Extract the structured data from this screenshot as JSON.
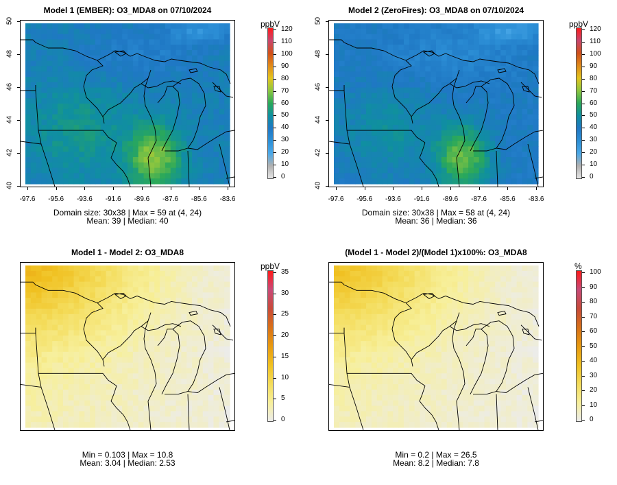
{
  "panels": [
    {
      "id": "p1",
      "title": "Model 1 (EMBER): O3_MDA8 on 07/10/2024",
      "stats_line1": "Domain size: 30x38 | Max = 59 at (4, 24)",
      "stats_line2": "Mean: 39 |  Median: 40",
      "unit": "ppbV",
      "cbar_labels": [
        "120",
        "110",
        "100",
        "90",
        "80",
        "70",
        "60",
        "50",
        "40",
        "30",
        "20",
        "10",
        "0"
      ],
      "x_ticks": [
        "-97.6",
        "-95.6",
        "-93.6",
        "-91.6",
        "-89.6",
        "-87.6",
        "-85.6",
        "-83.6"
      ],
      "y_ticks": [
        "50",
        "48",
        "46",
        "44",
        "42",
        "40"
      ]
    },
    {
      "id": "p2",
      "title": "Model 2 (ZeroFires): O3_MDA8 on 07/10/2024",
      "stats_line1": "Domain size: 30x38 | Max = 58 at (4, 24)",
      "stats_line2": "Mean: 36 |  Median: 36",
      "unit": "ppbV",
      "cbar_labels": [
        "120",
        "110",
        "100",
        "90",
        "80",
        "70",
        "60",
        "50",
        "40",
        "30",
        "20",
        "10",
        "0"
      ],
      "x_ticks": [
        "-97.6",
        "-95.6",
        "-93.6",
        "-91.6",
        "-89.6",
        "-87.6",
        "-85.6",
        "-83.6"
      ],
      "y_ticks": [
        "50",
        "48",
        "46",
        "44",
        "42",
        "40"
      ]
    },
    {
      "id": "p3",
      "title": "Model 1 - Model 2: O3_MDA8",
      "stats_line1": "Min = 0.103 | Max = 10.8",
      "stats_line2": "Mean: 3.04 |  Median: 2.53",
      "unit": "ppbV",
      "cbar_labels": [
        "35",
        "30",
        "25",
        "20",
        "15",
        "10",
        "5",
        "0"
      ]
    },
    {
      "id": "p4",
      "title": "(Model 1 - Model 2)/(Model 1)x100%: O3_MDA8",
      "stats_line1": "Min = 0.2 | Max = 26.5",
      "stats_line2": "Mean: 8.2 |  Median: 7.8",
      "unit": "%",
      "cbar_labels": [
        "100",
        "90",
        "80",
        "70",
        "60",
        "50",
        "40",
        "30",
        "20",
        "10",
        "0"
      ]
    }
  ],
  "colors": {
    "ozone_scale": [
      "#e6e6e6",
      "#b0b0b0",
      "#4aa8e8",
      "#2c8fd6",
      "#1f78c4",
      "#0f8fa0",
      "#2aa85a",
      "#8cc63f",
      "#e3c51e",
      "#e08a1a",
      "#d0501a",
      "#c8466e",
      "#ff1a1a"
    ],
    "diff_scale": [
      "#ececec",
      "#f7ef9a",
      "#f4dc5a",
      "#f0c020",
      "#e89a10",
      "#d87018",
      "#c84a3a",
      "#c84a78",
      "#ff1a1a"
    ],
    "border": "#000000"
  }
}
